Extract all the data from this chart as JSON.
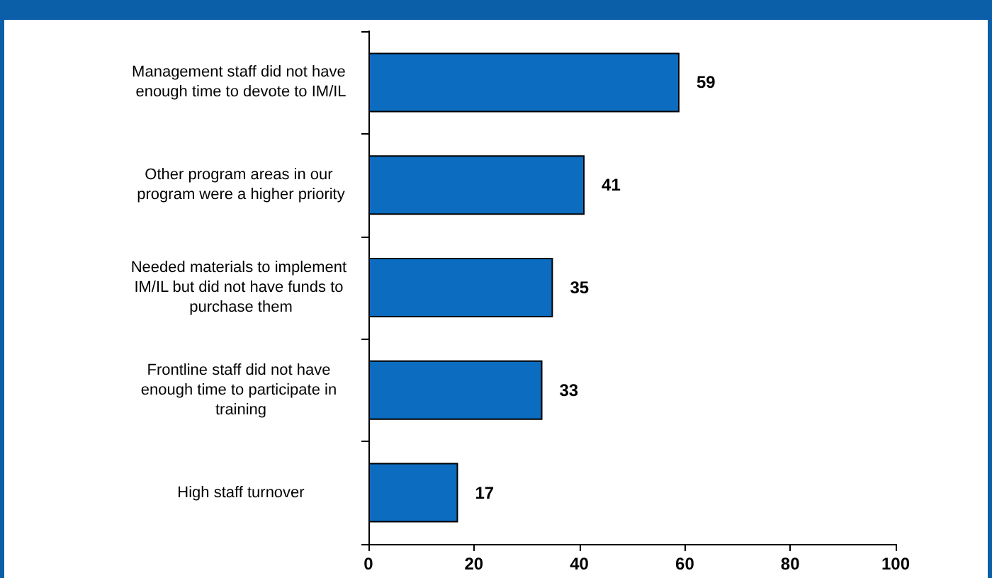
{
  "chart_data": {
    "type": "bar",
    "orientation": "horizontal",
    "categories": [
      "Management staff did not have enough time to devote to IM/IL",
      "Other program areas in our program were a higher priority",
      "Needed materials to implement IM/IL but did not have funds to purchase them",
      "Frontline staff did not have enough time to participate in training",
      "High staff turnover"
    ],
    "values": [
      59,
      41,
      35,
      33,
      17
    ],
    "color": "#0b6cc0",
    "data_labels": true,
    "xlim": [
      0,
      100
    ],
    "xticks": [
      0,
      20,
      40,
      60,
      80,
      100
    ],
    "grid": false
  }
}
